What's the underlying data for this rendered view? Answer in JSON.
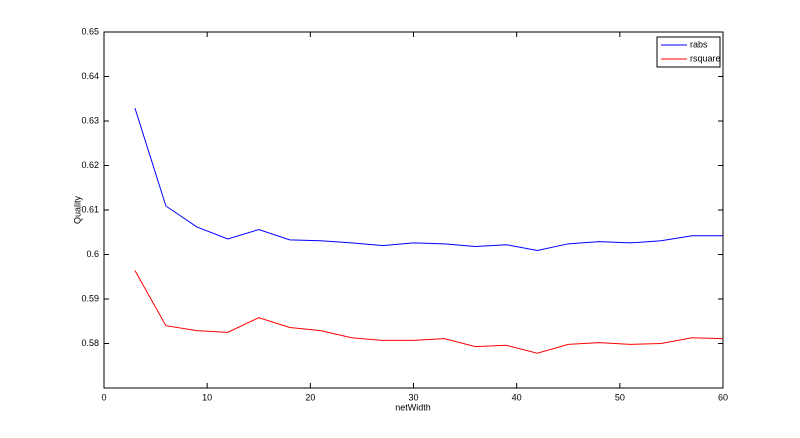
{
  "chart_data": {
    "type": "line",
    "x_label": "netWidth",
    "y_label": "Quality",
    "x": [
      3,
      6,
      9,
      12,
      15,
      18,
      21,
      24,
      27,
      30,
      33,
      36,
      39,
      42,
      45,
      48,
      51,
      54,
      57,
      60
    ],
    "series": [
      {
        "name": "rabs",
        "color": "#0000ff",
        "values": [
          0.6329,
          0.6109,
          0.6062,
          0.6035,
          0.6056,
          0.6033,
          0.6031,
          0.6026,
          0.602,
          0.6026,
          0.6024,
          0.6018,
          0.6022,
          0.6009,
          0.6024,
          0.6029,
          0.6026,
          0.6031,
          0.6042,
          0.6042
        ]
      },
      {
        "name": "rsquare",
        "color": "#ff0000",
        "values": [
          0.5964,
          0.584,
          0.5829,
          0.5825,
          0.5858,
          0.5836,
          0.5829,
          0.5813,
          0.5807,
          0.5807,
          0.5811,
          0.5793,
          0.5796,
          0.5778,
          0.5798,
          0.5802,
          0.5798,
          0.58,
          0.5813,
          0.5811
        ]
      }
    ],
    "xlim": [
      0,
      60
    ],
    "xticks": [
      0,
      10,
      20,
      30,
      40,
      50,
      60
    ],
    "ylim": [
      0.57,
      0.65
    ],
    "yticks": [
      0.58,
      0.59,
      0.6,
      0.61,
      0.62,
      0.63,
      0.64,
      0.65
    ],
    "legend_position": "upper right"
  }
}
